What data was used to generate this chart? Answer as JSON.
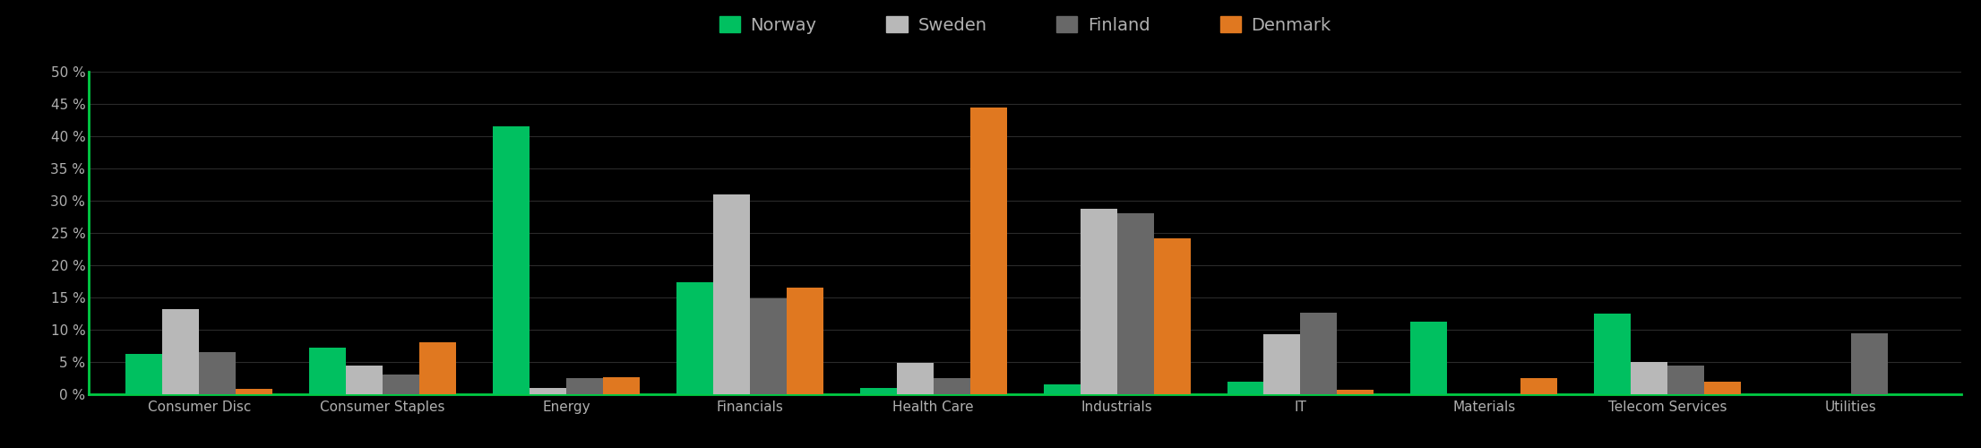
{
  "categories": [
    "Consumer Disc",
    "Consumer Staples",
    "Energy",
    "Financials",
    "Health Care",
    "Industrials",
    "IT",
    "Materials",
    "Telecom Services",
    "Utilities"
  ],
  "series": {
    "Norway": [
      6.3,
      7.2,
      41.5,
      17.3,
      1.0,
      1.5,
      2.0,
      11.2,
      12.5,
      0.0
    ],
    "Sweden": [
      13.2,
      4.5,
      1.0,
      31.0,
      4.8,
      28.8,
      9.3,
      0.0,
      5.0,
      0.0
    ],
    "Finland": [
      6.5,
      3.0,
      2.5,
      14.8,
      2.5,
      28.0,
      12.7,
      0.0,
      4.5,
      9.5
    ],
    "Denmark": [
      0.8,
      8.1,
      2.6,
      16.5,
      44.5,
      24.2,
      0.7,
      2.5,
      2.0,
      0.0
    ]
  },
  "colors": {
    "Norway": "#00c060",
    "Sweden": "#b8b8b8",
    "Finland": "#686868",
    "Denmark": "#e07820"
  },
  "ylim": [
    0,
    50
  ],
  "yticks": [
    0,
    5,
    10,
    15,
    20,
    25,
    30,
    35,
    40,
    45,
    50
  ],
  "background_color": "#000000",
  "text_color": "#b0b0b0",
  "grid_color": "#2a2a2a",
  "axis_line_color": "#00cc44",
  "legend_labels": [
    "Norway",
    "Sweden",
    "Finland",
    "Denmark"
  ],
  "bar_width": 0.2,
  "figsize": [
    22.11,
    5.0
  ],
  "dpi": 100
}
